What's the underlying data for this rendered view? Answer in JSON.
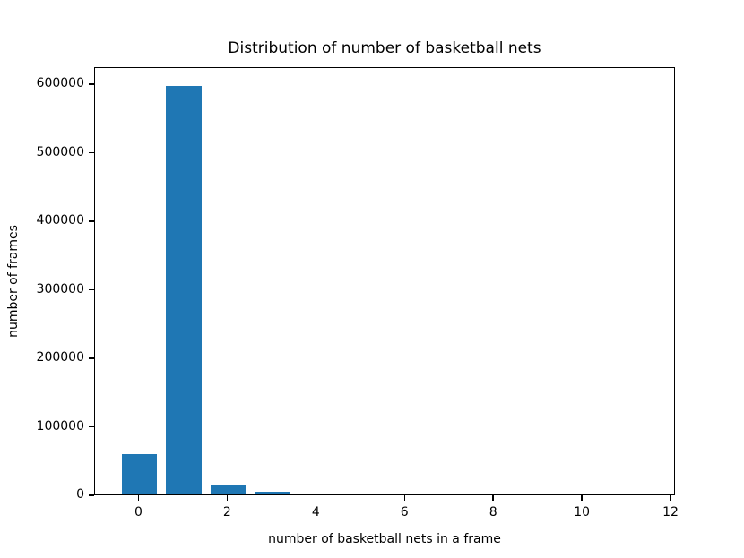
{
  "chart_data": {
    "type": "bar",
    "title": "Distribution of number of basketball nets",
    "xlabel": "number of basketball nets in a frame",
    "ylabel": "number of frames",
    "categories": [
      0,
      1,
      2,
      3,
      4,
      5,
      6,
      7,
      8,
      9,
      10,
      11
    ],
    "values": [
      59000,
      596000,
      13000,
      3500,
      800,
      0,
      0,
      0,
      0,
      0,
      0,
      0
    ],
    "bar_color": "#1f77b4",
    "bar_width_units": 0.8,
    "xticks": [
      0,
      2,
      4,
      6,
      8,
      10,
      12
    ],
    "yticks": [
      0,
      100000,
      200000,
      300000,
      400000,
      500000,
      600000
    ],
    "xlim": [
      -1.0,
      12.1
    ],
    "ylim": [
      0,
      625000
    ],
    "grid": false,
    "legend_position": "none",
    "axis_color": "#000000",
    "background_color": "#ffffff"
  }
}
